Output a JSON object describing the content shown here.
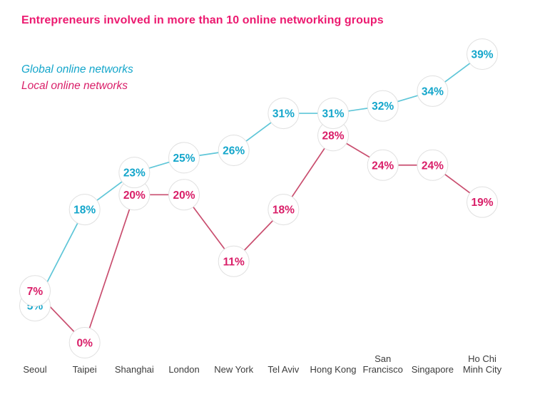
{
  "chart": {
    "title": "Entrepreneurs involved in more than 10 online networking groups",
    "title_color": "#EC1A70"
  },
  "chart_data": {
    "type": "line",
    "title": "Entrepreneurs involved in more than 10 online networking groups",
    "categories": [
      "Seoul",
      "Taipei",
      "Shanghai",
      "London",
      "New York",
      "Tel Aviv",
      "Hong Kong",
      "San\nFrancisco",
      "Singapore",
      "Ho Chi\nMinh City"
    ],
    "series": [
      {
        "name": "Global online networks",
        "values": [
          5,
          18,
          23,
          25,
          26,
          31,
          31,
          32,
          34,
          39
        ],
        "text_color": "#14A6CB",
        "line_color": "#5FC6D8"
      },
      {
        "name": "Local online networks",
        "values": [
          7,
          0,
          20,
          20,
          11,
          18,
          28,
          24,
          24,
          19
        ],
        "text_color": "#D91E68",
        "line_color": "#C94E6F"
      }
    ],
    "value_suffix": "%",
    "ylim": [
      0,
      42
    ],
    "grid": false,
    "axes_drawn": false,
    "legend_position": "top-left",
    "point_style": "white-circle-badge",
    "circle_stroke_color": "#E0E0E0",
    "axis_label_color": "#3C3C3C"
  }
}
